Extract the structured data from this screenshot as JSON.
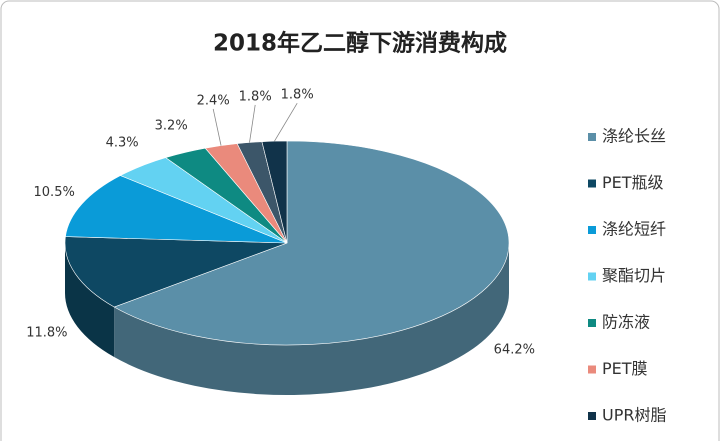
{
  "chart_data": {
    "type": "pie3d",
    "title": "2018年乙二醇下游消费构成",
    "categories": [
      "涤纶长丝",
      "PET瓶级",
      "涤纶短纤",
      "聚酯切片",
      "防冻液",
      "PET膜",
      null,
      "UPR树脂"
    ],
    "values": [
      64.2,
      11.8,
      10.5,
      4.3,
      3.2,
      2.4,
      1.8,
      1.8
    ],
    "value_labels": [
      "64.2%",
      "11.8%",
      "10.5%",
      "4.3%",
      "3.2%",
      "2.4%",
      "1.8%",
      "1.8%"
    ],
    "colors": [
      "#5b8fa8",
      "#0e4863",
      "#0a9bd8",
      "#63d2f2",
      "#0e8a82",
      "#ea8a7c",
      "#3c5669",
      "#11334a"
    ],
    "legend": "right"
  }
}
